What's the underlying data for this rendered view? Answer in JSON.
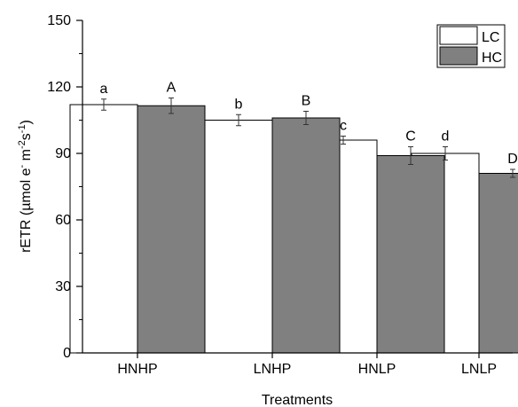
{
  "chart_data": {
    "type": "bar",
    "xlabel": "Treatments",
    "ylabel_parts": [
      "rETR (",
      "µ",
      "mol e",
      "-",
      " m",
      "-2",
      "s",
      "-1",
      ")"
    ],
    "ylim": [
      0,
      150
    ],
    "yticks": [
      "0",
      "30",
      "60",
      "90",
      "120",
      "150"
    ],
    "categories": [
      "HNHP",
      "LNHP",
      "HNLP",
      "LNLP"
    ],
    "series": [
      {
        "name": "LC",
        "color": "#ffffff",
        "values": [
          112,
          105,
          96,
          90
        ],
        "errors": [
          2.5,
          2.5,
          1.8,
          3.0
        ],
        "letters": [
          "a",
          "b",
          "c",
          "d"
        ]
      },
      {
        "name": "HC",
        "color": "#808080",
        "values": [
          111.5,
          106,
          89,
          81
        ],
        "errors": [
          3.5,
          3.0,
          4.0,
          1.8
        ],
        "letters": [
          "A",
          "B",
          "C",
          "D"
        ]
      }
    ],
    "legend_position": "top-right",
    "grid": false
  }
}
